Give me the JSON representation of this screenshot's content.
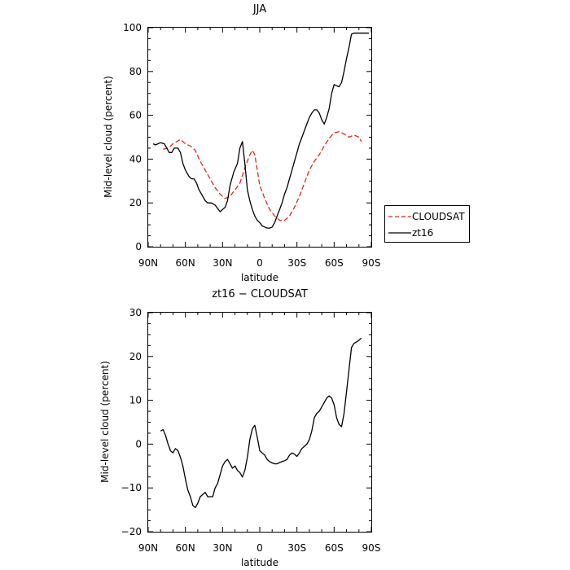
{
  "chart_data": [
    {
      "type": "line",
      "title": "JJA",
      "xlabel": "latitude",
      "ylabel": "Mid-level cloud (percent)",
      "xlim": [
        90,
        -90
      ],
      "ylim": [
        0,
        100
      ],
      "xticks": [
        90,
        60,
        30,
        0,
        -30,
        -60,
        -90
      ],
      "xtick_labels": [
        "90N",
        "60N",
        "30N",
        "0",
        "30S",
        "60S",
        "90S"
      ],
      "yticks": [
        0,
        20,
        40,
        60,
        80,
        100
      ],
      "ytick_labels": [
        "0",
        "20",
        "40",
        "60",
        "80",
        "100"
      ],
      "legend_position": "right",
      "series": [
        {
          "name": "CLOUDSAT",
          "color": "#e8231c",
          "dash": "dashed",
          "x": [
            78,
            74,
            70,
            67,
            64,
            60,
            56,
            52,
            48,
            44,
            40,
            36,
            32,
            28,
            24,
            20,
            16,
            12,
            8,
            6,
            4,
            0,
            -4,
            -8,
            -12,
            -16,
            -20,
            -24,
            -28,
            -32,
            -36,
            -40,
            -44,
            -48,
            -52,
            -56,
            -60,
            -64,
            -68,
            -72,
            -76,
            -80,
            -82
          ],
          "y": [
            44.5,
            45,
            47,
            48,
            49,
            47,
            46,
            44,
            39,
            35,
            31,
            27,
            24,
            22,
            23,
            26,
            29,
            36,
            42,
            44,
            42,
            28,
            22,
            17,
            14,
            12,
            12,
            14,
            18,
            23,
            29,
            35,
            39,
            42,
            46,
            49.5,
            52,
            52.5,
            51.5,
            50,
            51,
            50,
            48
          ]
        },
        {
          "name": "zt16",
          "color": "#000000",
          "dash": "solid",
          "x": [
            86,
            84,
            80,
            77,
            75,
            73,
            71,
            69,
            66,
            64,
            62,
            60,
            57,
            55,
            53,
            51,
            49,
            47,
            44,
            42,
            39,
            36,
            32,
            30,
            28,
            26,
            24,
            21,
            18,
            16,
            14,
            12,
            10,
            8,
            6,
            4,
            2,
            0,
            -2,
            -4,
            -6,
            -8,
            -10,
            -12,
            -14,
            -16,
            -18,
            -20,
            -22,
            -24,
            -26,
            -28,
            -30,
            -32,
            -34,
            -36,
            -38,
            -40,
            -42,
            -44,
            -46,
            -48,
            -50,
            -52,
            -54,
            -56,
            -58,
            -60,
            -62,
            -64,
            -66,
            -68,
            -70,
            -72,
            -74,
            -76,
            -78,
            -80,
            -82,
            -84,
            -86,
            -88
          ],
          "y": [
            47,
            46.5,
            47.5,
            47,
            45,
            43,
            43,
            45,
            45,
            43,
            38,
            35,
            32,
            31,
            31,
            29,
            26,
            24,
            21,
            20,
            20,
            19,
            16,
            17,
            18,
            21,
            28,
            34,
            38,
            45,
            48,
            38,
            26,
            21,
            17,
            14,
            12,
            11,
            9.5,
            9,
            8.5,
            8.5,
            9,
            11,
            14,
            17,
            20,
            24,
            27,
            31,
            35,
            39,
            43,
            47,
            50,
            53,
            56,
            59,
            61,
            62.5,
            62.5,
            61,
            58,
            56,
            59,
            63,
            70,
            74,
            73.5,
            73,
            75,
            80,
            86,
            91,
            97,
            97.5,
            97.5,
            97.5,
            97.5,
            97.5,
            97.5,
            97.5
          ]
        }
      ]
    },
    {
      "type": "line",
      "title": "zt16 − CLOUDSAT",
      "xlabel": "latitude",
      "ylabel": "Mid-level cloud (percent)",
      "xlim": [
        90,
        -90
      ],
      "ylim": [
        -20,
        30
      ],
      "xticks": [
        90,
        60,
        30,
        0,
        -30,
        -60,
        -90
      ],
      "xtick_labels": [
        "90N",
        "60N",
        "30N",
        "0",
        "30S",
        "60S",
        "90S"
      ],
      "yticks": [
        -20,
        -10,
        0,
        10,
        20,
        30
      ],
      "ytick_labels": [
        "−20",
        "−10",
        "0",
        "10",
        "20",
        "30"
      ],
      "series": [
        {
          "color": "#000000",
          "dash": "solid",
          "x": [
            80,
            78,
            76,
            74,
            72,
            70,
            68,
            66,
            64,
            62,
            60,
            58,
            56,
            54,
            52,
            50,
            48,
            46,
            44,
            42,
            40,
            38,
            36,
            34,
            32,
            30,
            28,
            26,
            24,
            22,
            20,
            18,
            16,
            14,
            12,
            10,
            8,
            6,
            4,
            2,
            0,
            -2,
            -4,
            -6,
            -8,
            -10,
            -12,
            -14,
            -16,
            -18,
            -20,
            -22,
            -24,
            -26,
            -28,
            -30,
            -32,
            -34,
            -36,
            -38,
            -40,
            -42,
            -44,
            -46,
            -48,
            -50,
            -52,
            -54,
            -56,
            -58,
            -60,
            -62,
            -64,
            -66,
            -68,
            -70,
            -72,
            -74,
            -76,
            -78,
            -80,
            -82
          ],
          "y": [
            3,
            3.3,
            2,
            0,
            -1.5,
            -2,
            -1,
            -1.5,
            -3,
            -5,
            -8,
            -10.5,
            -12,
            -14,
            -14.5,
            -13.5,
            -12,
            -11.5,
            -11,
            -12,
            -12,
            -12,
            -10,
            -9,
            -7,
            -5,
            -4,
            -3.5,
            -4.5,
            -5.5,
            -5,
            -6,
            -6.5,
            -7.5,
            -6,
            -3,
            1,
            3.5,
            4.3,
            1.5,
            -1.5,
            -2,
            -2.5,
            -3.5,
            -4,
            -4.3,
            -4.5,
            -4.5,
            -4.2,
            -4,
            -3.8,
            -3.5,
            -2.5,
            -2,
            -2.3,
            -2.8,
            -2,
            -1,
            -0.5,
            0,
            1,
            3,
            6,
            7,
            7.5,
            8.5,
            9.5,
            10.5,
            11,
            10.5,
            9,
            6,
            4.5,
            4,
            7,
            12,
            17,
            22,
            23,
            23.3,
            23.7,
            24.2
          ]
        }
      ]
    }
  ]
}
